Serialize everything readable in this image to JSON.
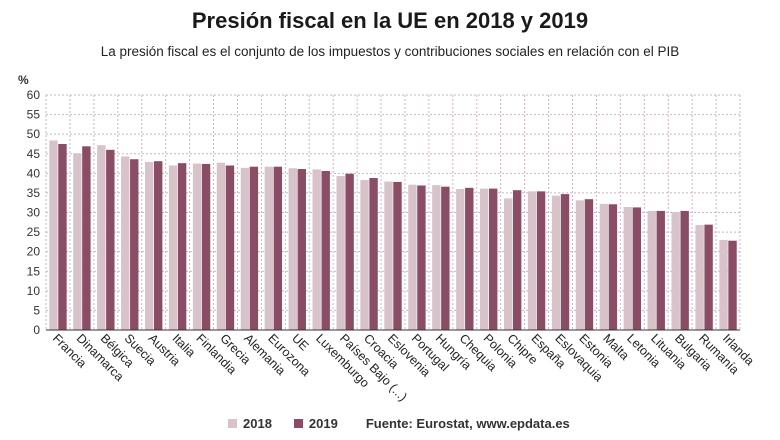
{
  "title": "Presión fiscal en la UE en 2018 y 2019",
  "subtitle": "La presión fiscal es el conjunto de los impuestos y contribuciones sociales en relación con el PIB",
  "source": "Fuente: Eurostat, www.epdata.es",
  "colors": {
    "s2018": "#d8c3cb",
    "s2019": "#8b4d65",
    "grid": "#cdb4c4",
    "axis": "#333333"
  },
  "chart_data": {
    "type": "bar",
    "title": "Presión fiscal en la UE en 2018 y 2019",
    "ylabel": "%",
    "ylim": [
      0,
      60
    ],
    "yticks": [
      0,
      5,
      10,
      15,
      20,
      25,
      30,
      35,
      40,
      45,
      50,
      55,
      60
    ],
    "grid": true,
    "legend": "bottom",
    "categories": [
      "Francia",
      "Dinamarca",
      "Bélgica",
      "Suecia",
      "Austria",
      "Italia",
      "Finlandia",
      "Grecia",
      "Alemania",
      "Eurozona",
      "UE",
      "Luxemburgo",
      "Países Bajo (...)",
      "Croacia",
      "Eslovenia",
      "Portugal",
      "Hungría",
      "Chequia",
      "Polonia",
      "Chipre",
      "España",
      "Eslovaquia",
      "Estonia",
      "Malta",
      "Letonia",
      "Lituania",
      "Bulgaria",
      "Rumanía",
      "Irlanda"
    ],
    "series": [
      {
        "name": "2018",
        "values": [
          48.4,
          45.1,
          47.2,
          44.3,
          42.9,
          42.0,
          42.5,
          42.7,
          41.4,
          41.7,
          41.3,
          41.0,
          39.3,
          38.3,
          37.9,
          37.1,
          37.0,
          36.0,
          36.1,
          33.6,
          35.4,
          34.3,
          33.1,
          32.2,
          31.4,
          30.4,
          30.1,
          26.8,
          23.0
        ]
      },
      {
        "name": "2019",
        "values": [
          47.5,
          46.9,
          46.0,
          43.6,
          43.1,
          42.6,
          42.4,
          42.0,
          41.7,
          41.7,
          41.1,
          40.6,
          39.9,
          38.8,
          37.8,
          36.9,
          36.6,
          36.3,
          36.1,
          35.7,
          35.4,
          34.7,
          33.4,
          32.1,
          31.3,
          30.4,
          30.4,
          26.9,
          22.8
        ]
      }
    ]
  }
}
